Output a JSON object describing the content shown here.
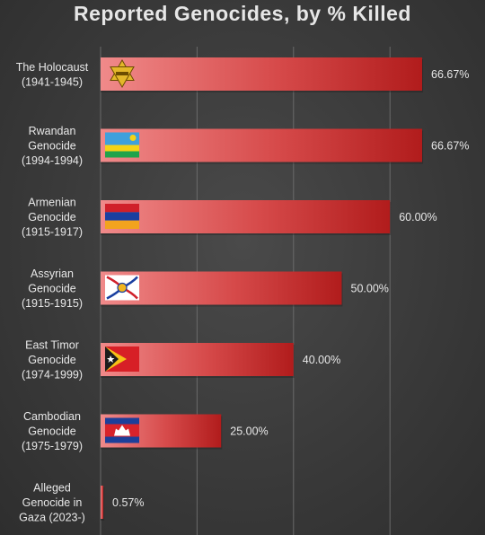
{
  "chart_data": {
    "type": "bar",
    "orientation": "horizontal",
    "title": "Reported Genocides, by % Killed",
    "categories": [
      [
        "The Holocaust",
        "(1941-1945)"
      ],
      [
        "Rwandan",
        "Genocide",
        "(1994-1994)"
      ],
      [
        "Armenian",
        "Genocide",
        "(1915-1917)"
      ],
      [
        "Assyrian",
        "Genocide",
        "(1915-1915)"
      ],
      [
        "East Timor",
        "Genocide",
        "(1974-1999)"
      ],
      [
        "Cambodian",
        "Genocide",
        "(1975-1979)"
      ],
      [
        "Alleged",
        "Genocide in",
        "Gaza (2023-)"
      ]
    ],
    "values": [
      66.67,
      66.67,
      60.0,
      50.0,
      40.0,
      25.0,
      0.57
    ],
    "data_labels": [
      "66.67%",
      "66.67%",
      "60.00%",
      "50.00%",
      "40.00%",
      "25.00%",
      "0.57%"
    ],
    "flag_icons": [
      "star-of-david-icon",
      "rwanda-flag-icon",
      "armenia-flag-icon",
      "assyria-flag-icon",
      "east-timor-flag-icon",
      "cambodia-flag-icon",
      ""
    ],
    "xlim": [
      0,
      80
    ],
    "grid": true,
    "colors": {
      "bar_light": "#f08080",
      "bar_dark": "#b31e1e",
      "background": "#3c3c3c",
      "text": "#e8e8e8"
    }
  }
}
